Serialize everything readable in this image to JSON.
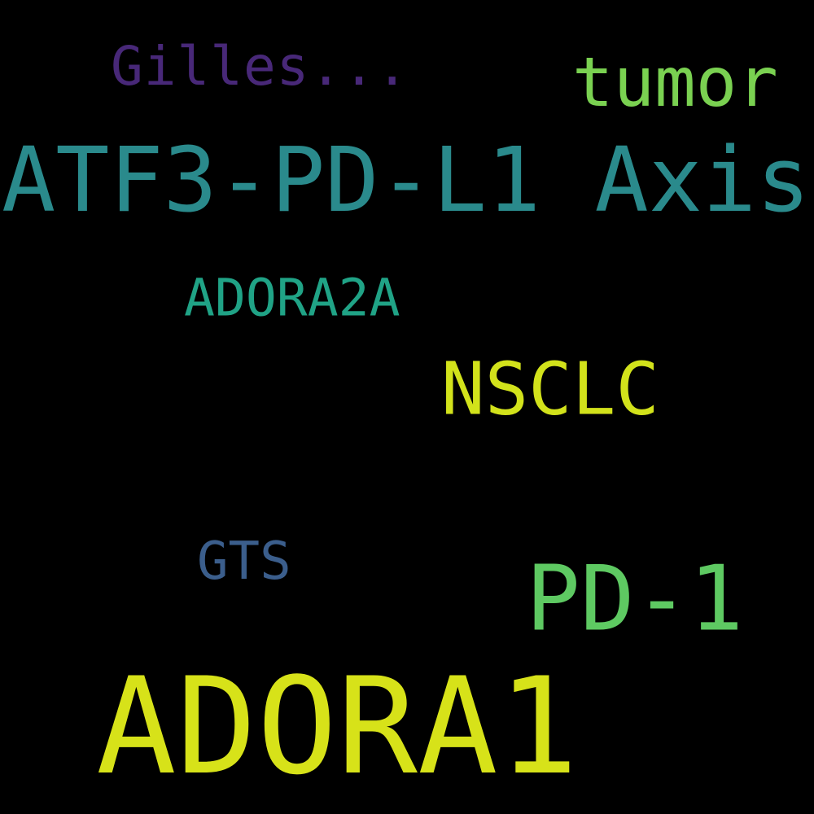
{
  "words": [
    {
      "text": "Gilles...",
      "color": "#482878"
    },
    {
      "text": "tumor",
      "color": "#7ad151"
    },
    {
      "text": "ATF3-PD-L1 Axis",
      "color": "#2a8a8c"
    },
    {
      "text": "ADORA2A",
      "color": "#20a386"
    },
    {
      "text": "NSCLC",
      "color": "#d2e21b"
    },
    {
      "text": "GTS",
      "color": "#3b5e8c"
    },
    {
      "text": "PD-1",
      "color": "#5ec962"
    },
    {
      "text": "ADORA1",
      "color": "#d7e219"
    }
  ],
  "background_color": "#000000"
}
